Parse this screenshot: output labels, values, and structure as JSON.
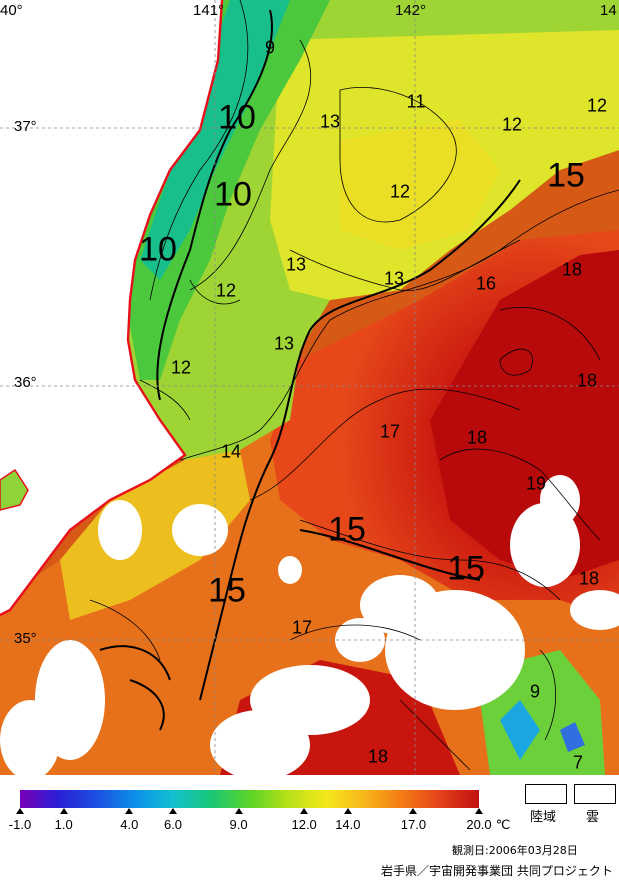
{
  "map": {
    "longitude_labels": [
      "40°",
      "141°",
      "142°",
      "14"
    ],
    "latitude_labels": [
      "37°",
      "36°",
      "35°"
    ],
    "contour_labels": [
      "9",
      "10",
      "10",
      "10",
      "11",
      "12",
      "12",
      "12",
      "13",
      "12",
      "13",
      "13",
      "13",
      "12",
      "14",
      "15",
      "15",
      "15",
      "15",
      "16",
      "17",
      "17",
      "18",
      "18",
      "18",
      "18",
      "18",
      "19",
      "9",
      "7"
    ],
    "land_color": "#ffffff",
    "coastline_color": "#e8101a",
    "cloud_color": "#ffffff"
  },
  "colorbar": {
    "unit": "℃",
    "ticks": [
      "-1.0",
      "1.0",
      "4.0",
      "6.0",
      "9.0",
      "12.0",
      "14.0",
      "17.0",
      "20.0"
    ],
    "colors": [
      "#7a00b8",
      "#2a1fd6",
      "#1d4fe0",
      "#0b8fe8",
      "#12c0d0",
      "#19c776",
      "#5ad428",
      "#b6e018",
      "#f4e81c",
      "#f7b61a",
      "#f47a14",
      "#e2401a",
      "#c21010"
    ]
  },
  "legend": {
    "land_label": "陸域",
    "cloud_label": "雲"
  },
  "footer": {
    "observation_date": "観測日:2006年03月28日",
    "credit": "岩手県／宇宙開発事業団 共同プロジェクト"
  }
}
